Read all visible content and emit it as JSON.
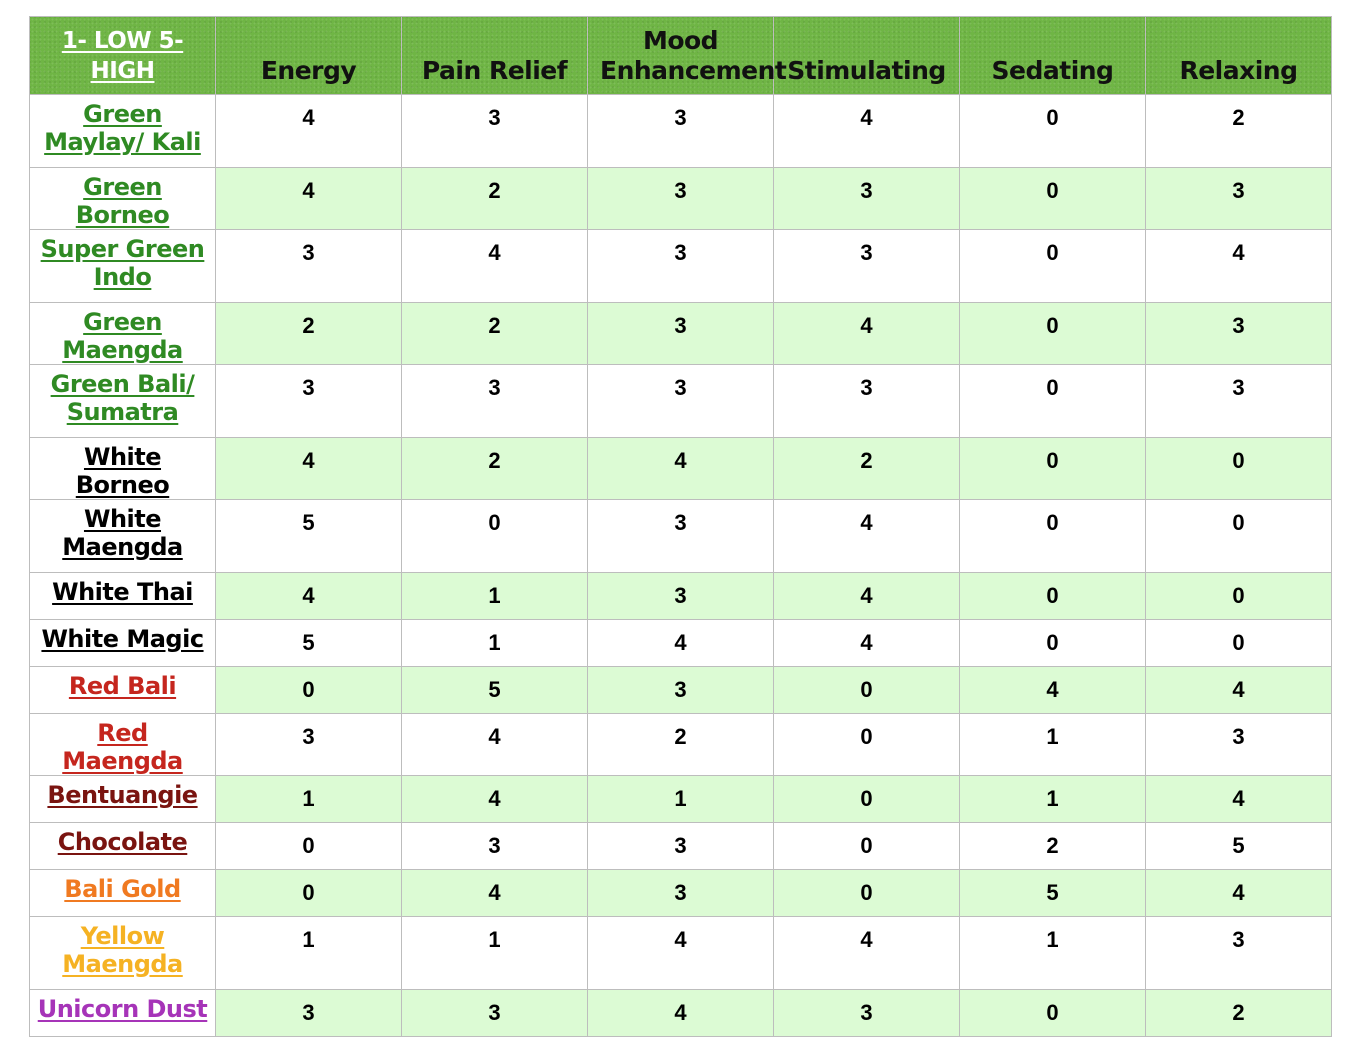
{
  "header": {
    "corner": "1- LOW 5-HIGH",
    "columns": [
      "Energy",
      "Pain Relief",
      "Mood Enhancement",
      "Stimulating",
      "Sedating",
      "Relaxing"
    ]
  },
  "colors": {
    "header_bg": "#6fb545",
    "row_shade": "#dcfbd4",
    "green": "#2f8a23",
    "black": "#000000",
    "red": "#c5261e",
    "maroon": "#7a1410",
    "orange": "#f07a21",
    "yellow": "#f5b223",
    "purple": "#a634b8"
  },
  "rows": [
    {
      "name": "Green Maylay/ Kali",
      "color": "green",
      "values": [
        4,
        3,
        3,
        4,
        0,
        2
      ]
    },
    {
      "name": "Green Borneo",
      "color": "green",
      "values": [
        4,
        2,
        3,
        3,
        0,
        3
      ]
    },
    {
      "name": "Super Green Indo",
      "color": "green",
      "values": [
        3,
        4,
        3,
        3,
        0,
        4
      ]
    },
    {
      "name": "Green Maengda",
      "color": "green",
      "values": [
        2,
        2,
        3,
        4,
        0,
        3
      ]
    },
    {
      "name": "Green Bali/ Sumatra",
      "color": "green",
      "values": [
        3,
        3,
        3,
        3,
        0,
        3
      ]
    },
    {
      "name": "White Borneo",
      "color": "black",
      "values": [
        4,
        2,
        4,
        2,
        0,
        0
      ]
    },
    {
      "name": "White Maengda",
      "color": "black",
      "values": [
        5,
        0,
        3,
        4,
        0,
        0
      ]
    },
    {
      "name": "White Thai",
      "color": "black",
      "values": [
        4,
        1,
        3,
        4,
        0,
        0
      ]
    },
    {
      "name": "White Magic",
      "color": "black",
      "values": [
        5,
        1,
        4,
        4,
        0,
        0
      ]
    },
    {
      "name": "Red Bali",
      "color": "red",
      "values": [
        0,
        5,
        3,
        0,
        4,
        4
      ]
    },
    {
      "name": "Red Maengda",
      "color": "red",
      "values": [
        3,
        4,
        2,
        0,
        1,
        3
      ]
    },
    {
      "name": "Bentuangie",
      "color": "maroon",
      "values": [
        1,
        4,
        1,
        0,
        1,
        4
      ]
    },
    {
      "name": "Chocolate",
      "color": "maroon",
      "values": [
        0,
        3,
        3,
        0,
        2,
        5
      ]
    },
    {
      "name": "Bali Gold",
      "color": "orange",
      "values": [
        0,
        4,
        3,
        0,
        5,
        4
      ]
    },
    {
      "name": "Yellow Maengda",
      "color": "yellow",
      "values": [
        1,
        1,
        4,
        4,
        1,
        3
      ]
    },
    {
      "name": "Unicorn Dust",
      "color": "purple",
      "values": [
        3,
        3,
        4,
        3,
        0,
        2
      ]
    }
  ]
}
